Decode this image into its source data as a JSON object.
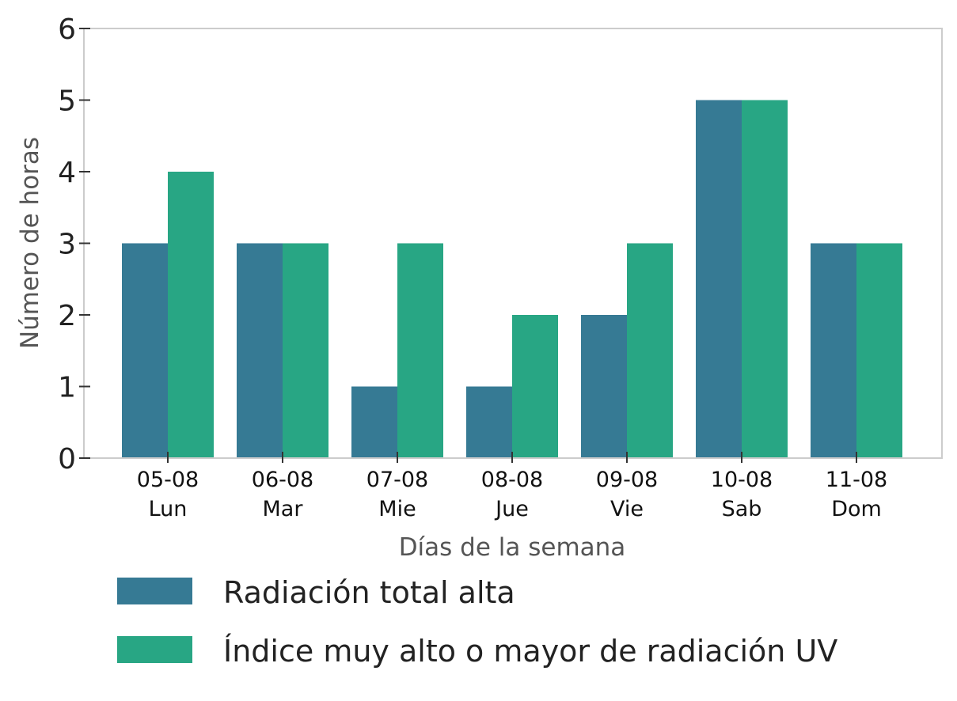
{
  "chart_data": {
    "type": "bar",
    "xlabel": "Días de la semana",
    "ylabel": "Número de horas",
    "ylim": [
      0,
      6
    ],
    "yticks": [
      "0",
      "1",
      "2",
      "3",
      "4",
      "5",
      "6"
    ],
    "grid": false,
    "legend_position": "bottom",
    "categories": [
      [
        "05-08",
        "Lun"
      ],
      [
        "06-08",
        "Mar"
      ],
      [
        "07-08",
        "Mie"
      ],
      [
        "08-08",
        "Jue"
      ],
      [
        "09-08",
        "Vie"
      ],
      [
        "10-08",
        "Sab"
      ],
      [
        "11-08",
        "Dom"
      ]
    ],
    "series": [
      {
        "name": "Radiación total alta",
        "color": "#367A94",
        "values": [
          3,
          3,
          1,
          1,
          2,
          5,
          3
        ]
      },
      {
        "name": "Índice muy alto o mayor de radiación UV",
        "color": "#28A684",
        "values": [
          4,
          3,
          3,
          2,
          3,
          5,
          3
        ]
      }
    ]
  }
}
